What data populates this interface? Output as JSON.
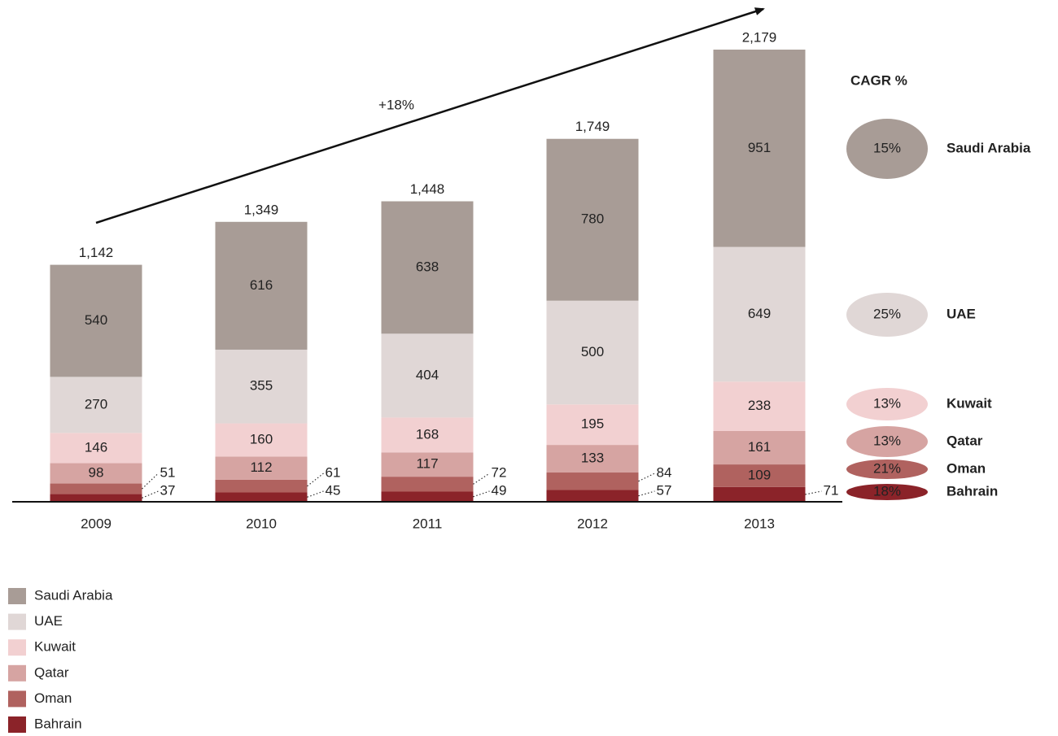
{
  "chart_data": {
    "type": "stacked_bar",
    "categories": [
      "2009",
      "2010",
      "2011",
      "2012",
      "2013"
    ],
    "series": [
      {
        "name": "Bahrain",
        "color": "#8b2329",
        "values": [
          37,
          45,
          49,
          57,
          71
        ],
        "cagr": 18,
        "cagr_label": "18%"
      },
      {
        "name": "Oman",
        "color": "#b0625f",
        "values": [
          51,
          61,
          72,
          84,
          109
        ],
        "cagr": 21,
        "cagr_label": "21%"
      },
      {
        "name": "Qatar",
        "color": "#d6a4a2",
        "values": [
          98,
          112,
          117,
          133,
          161
        ],
        "cagr": 13,
        "cagr_label": "13%"
      },
      {
        "name": "Kuwait",
        "color": "#f2d0d1",
        "values": [
          146,
          160,
          168,
          195,
          238
        ],
        "cagr": 13,
        "cagr_label": "13%"
      },
      {
        "name": "UAE",
        "color": "#e0d7d6",
        "values": [
          270,
          355,
          404,
          500,
          649
        ],
        "cagr": 25,
        "cagr_label": "25%"
      },
      {
        "name": "Saudi Arabia",
        "color": "#a89c96",
        "values": [
          540,
          616,
          638,
          780,
          951
        ],
        "cagr": 15,
        "cagr_label": "15%"
      }
    ],
    "totals": {
      "values": [
        1142,
        1349,
        1448,
        1749,
        2179
      ],
      "value_labels": [
        "1,142",
        "1,349",
        "1,448",
        "1,749",
        "2,179"
      ]
    },
    "growth_label": "+18%",
    "cagr_title": "CAGR %"
  }
}
